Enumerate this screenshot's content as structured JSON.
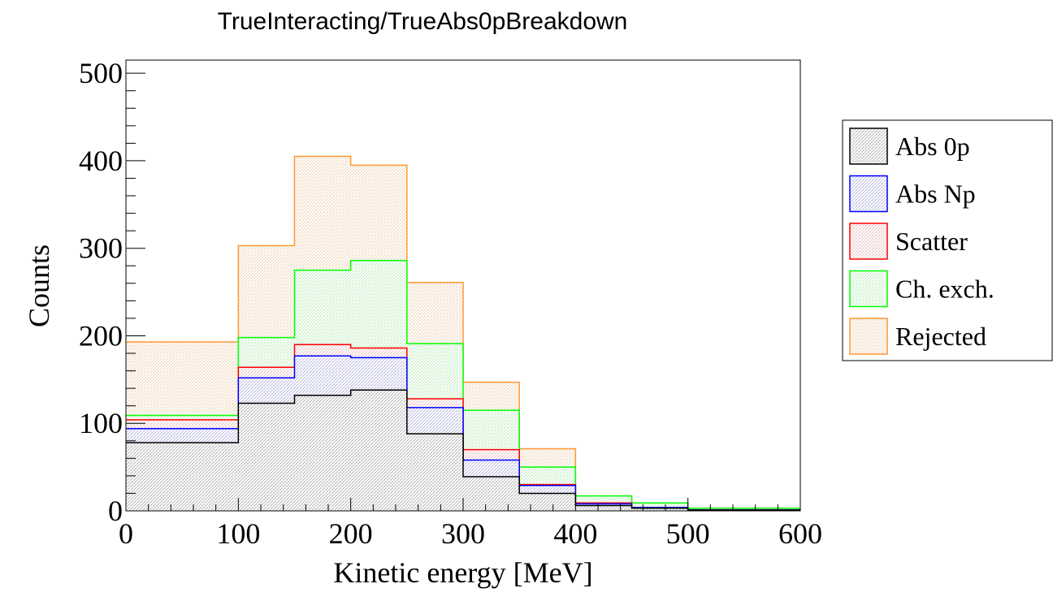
{
  "chart_data": {
    "type": "bar",
    "stacked": true,
    "histogram": true,
    "title": "TrueInteracting/TrueAbs0pBreakdown",
    "xlabel": "Kinetic energy [MeV]",
    "ylabel": "Counts",
    "xlim": [
      0,
      600
    ],
    "ylim": [
      0,
      515
    ],
    "bin_edges": [
      0,
      100,
      150,
      200,
      250,
      300,
      350,
      400,
      450,
      500,
      600
    ],
    "x_ticks": [
      "0",
      "100",
      "200",
      "300",
      "400",
      "500",
      "600"
    ],
    "y_ticks": [
      "0",
      "100",
      "200",
      "300",
      "400",
      "500"
    ],
    "legend_position": "right, outside plot",
    "series": [
      {
        "name": "Abs 0p",
        "color": "#000000",
        "values": [
          78,
          123,
          132,
          138,
          88,
          39,
          20,
          6,
          3,
          1
        ]
      },
      {
        "name": "Abs Np",
        "color": "#0000ff",
        "values": [
          16,
          29,
          45,
          37,
          30,
          19,
          9,
          2,
          1,
          0
        ]
      },
      {
        "name": "Scatter",
        "color": "#ff0000",
        "values": [
          10,
          12,
          13,
          11,
          10,
          12,
          1,
          1,
          0,
          0
        ]
      },
      {
        "name": "Ch. exch.",
        "color": "#00ff00",
        "values": [
          5,
          34,
          85,
          100,
          63,
          45,
          20,
          8,
          5,
          2
        ]
      },
      {
        "name": "Rejected",
        "color": "#ff9933",
        "values": [
          84,
          105,
          130,
          109,
          70,
          32,
          21,
          0,
          0,
          0
        ]
      }
    ]
  }
}
